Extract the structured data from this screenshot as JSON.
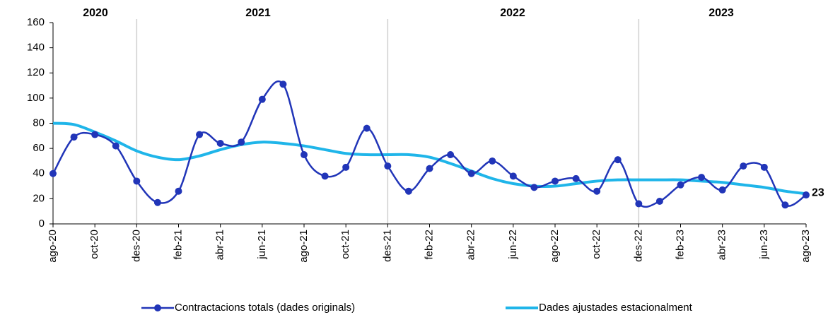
{
  "chart_data": {
    "type": "line",
    "categories": [
      "ago-20",
      null,
      "oct-20",
      null,
      "des-20",
      null,
      "feb-21",
      null,
      "abr-21",
      null,
      "jun-21",
      null,
      "ago-21",
      null,
      "oct-21",
      null,
      "des-21",
      null,
      "feb-22",
      null,
      "abr-22",
      null,
      "jun-22",
      null,
      "ago-22",
      null,
      "oct-22",
      null,
      "des-22",
      null,
      "feb-23",
      null,
      "abr-23",
      null,
      "jun-23",
      null,
      "ago-23"
    ],
    "series": [
      {
        "name": "Contractacions totals (dades originals)",
        "color": "#2135b8",
        "marker": true,
        "values": [
          40,
          69,
          71,
          62,
          34,
          17,
          26,
          71,
          64,
          65,
          99,
          111,
          55,
          38,
          45,
          76,
          46,
          26,
          44,
          55,
          40,
          50,
          38,
          29,
          34,
          36,
          26,
          51,
          16,
          18,
          31,
          37,
          27,
          46,
          45,
          15,
          23
        ]
      },
      {
        "name": "Dades ajustades estacionalment",
        "color": "#1fb5e9",
        "marker": false,
        "values": [
          80,
          79,
          73,
          66,
          58,
          53,
          51,
          54,
          59,
          63,
          65,
          64,
          62,
          59,
          56,
          55,
          55,
          55,
          53,
          48,
          42,
          36,
          32,
          30,
          30,
          32,
          34,
          35,
          35,
          35,
          35,
          34,
          33,
          31,
          29,
          26,
          24
        ]
      }
    ],
    "year_labels": [
      "2020",
      "2021",
      "2022",
      "2023"
    ],
    "ylim": [
      0,
      160
    ],
    "yticks": [
      0,
      20,
      40,
      60,
      80,
      100,
      120,
      140,
      160
    ],
    "grid": false,
    "legend": "bottom"
  }
}
